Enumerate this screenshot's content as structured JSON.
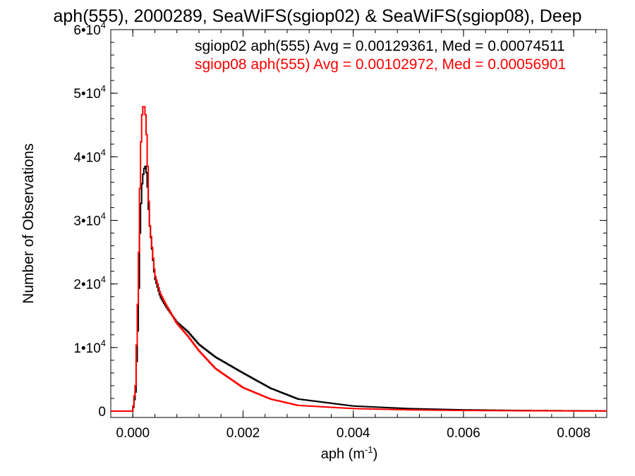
{
  "chart_data": {
    "type": "line",
    "title": "aph(555), 2000289, SeaWiFS(sgiop02) & SeaWiFS(sgiop08), Deep",
    "xlabel_base": "aph (m",
    "xlabel_exp": "-1",
    "xlabel_end": ")",
    "ylabel": "Number of Observations",
    "xlim": [
      -0.0004,
      0.0086
    ],
    "ylim": [
      -1000,
      60000
    ],
    "x_ticks": [
      {
        "value": 0.0,
        "label": "0.000"
      },
      {
        "value": 0.002,
        "label": "0.002"
      },
      {
        "value": 0.004,
        "label": "0.004"
      },
      {
        "value": 0.006,
        "label": "0.006"
      },
      {
        "value": 0.008,
        "label": "0.008"
      }
    ],
    "y_ticks": [
      {
        "value": 0,
        "label": "0",
        "exp": ""
      },
      {
        "value": 10000,
        "label": "1•10",
        "exp": "4"
      },
      {
        "value": 20000,
        "label": "2•10",
        "exp": "4"
      },
      {
        "value": 30000,
        "label": "3•10",
        "exp": "4"
      },
      {
        "value": 40000,
        "label": "4•10",
        "exp": "4"
      },
      {
        "value": 50000,
        "label": "5•10",
        "exp": "4"
      },
      {
        "value": 60000,
        "label": "6•10",
        "exp": "4"
      }
    ],
    "legend": [
      {
        "text": "sgiop02 aph(555) Avg = 0.00129361, Med = 0.00074511",
        "color": "#000000"
      },
      {
        "text": "sgiop08 aph(555) Avg = 0.00102972, Med = 0.00056901",
        "color": "#ff0000"
      }
    ],
    "series": [
      {
        "color": "#000000",
        "points": [
          [
            -0.0004,
            0
          ],
          [
            0.0,
            0
          ],
          [
            5e-05,
            3000
          ],
          [
            0.0001,
            15000
          ],
          [
            0.00013,
            28000
          ],
          [
            0.00016,
            35000
          ],
          [
            0.0002,
            38000
          ],
          [
            0.00023,
            38500
          ],
          [
            0.00026,
            37000
          ],
          [
            0.0003,
            30000
          ],
          [
            0.0004,
            21000
          ],
          [
            0.0005,
            18000
          ],
          [
            0.0006,
            16500
          ],
          [
            0.0008,
            14000
          ],
          [
            0.001,
            12500
          ],
          [
            0.0012,
            10500
          ],
          [
            0.0015,
            8500
          ],
          [
            0.002,
            6000
          ],
          [
            0.0025,
            3600
          ],
          [
            0.003,
            1900
          ],
          [
            0.004,
            800
          ],
          [
            0.005,
            400
          ],
          [
            0.006,
            200
          ],
          [
            0.007,
            100
          ],
          [
            0.008,
            50
          ],
          [
            0.0086,
            30
          ]
        ]
      },
      {
        "color": "#ff0000",
        "points": [
          [
            -0.0004,
            0
          ],
          [
            0.0,
            0
          ],
          [
            5e-05,
            4000
          ],
          [
            0.0001,
            20000
          ],
          [
            0.00013,
            35000
          ],
          [
            0.00016,
            46000
          ],
          [
            0.0002,
            48500
          ],
          [
            0.00024,
            46000
          ],
          [
            0.00028,
            36000
          ],
          [
            0.0003,
            30000
          ],
          [
            0.0004,
            21500
          ],
          [
            0.0005,
            18500
          ],
          [
            0.0006,
            16800
          ],
          [
            0.0008,
            13800
          ],
          [
            0.001,
            11800
          ],
          [
            0.0012,
            9500
          ],
          [
            0.0015,
            6700
          ],
          [
            0.002,
            3700
          ],
          [
            0.0025,
            1900
          ],
          [
            0.003,
            900
          ],
          [
            0.004,
            400
          ],
          [
            0.005,
            200
          ],
          [
            0.006,
            100
          ],
          [
            0.007,
            60
          ],
          [
            0.008,
            30
          ],
          [
            0.0086,
            20
          ]
        ]
      }
    ]
  }
}
